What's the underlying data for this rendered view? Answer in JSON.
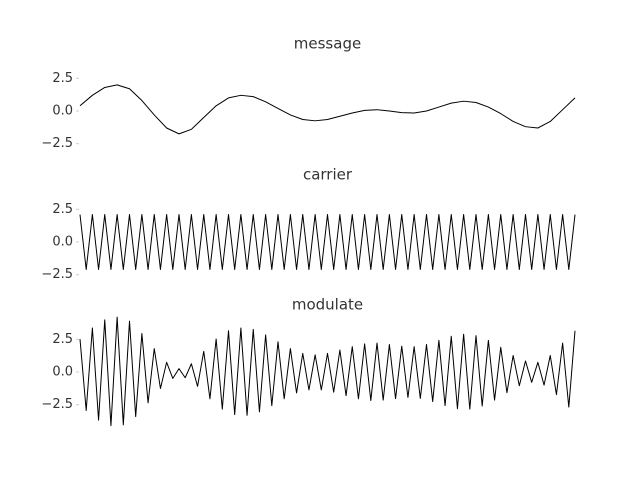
{
  "chart_data": [
    {
      "type": "line",
      "title": "message",
      "color": "#000000",
      "x": [
        0,
        0.025,
        0.05,
        0.075,
        0.1,
        0.125,
        0.15,
        0.175,
        0.2,
        0.225,
        0.25,
        0.275,
        0.3,
        0.325,
        0.35,
        0.375,
        0.4,
        0.425,
        0.45,
        0.475,
        0.5,
        0.525,
        0.55,
        0.575,
        0.6,
        0.625,
        0.65,
        0.675,
        0.7,
        0.725,
        0.75,
        0.775,
        0.8,
        0.825,
        0.85,
        0.875,
        0.9,
        0.925,
        0.95,
        0.975,
        1
      ],
      "values": [
        0.4,
        1.2,
        1.8,
        2.0,
        1.7,
        0.8,
        -0.3,
        -1.3,
        -1.75,
        -1.4,
        -0.5,
        0.4,
        1.0,
        1.2,
        1.1,
        0.7,
        0.2,
        -0.3,
        -0.65,
        -0.75,
        -0.65,
        -0.4,
        -0.15,
        0.05,
        0.1,
        0.0,
        -0.12,
        -0.15,
        0.0,
        0.3,
        0.6,
        0.75,
        0.65,
        0.3,
        -0.2,
        -0.8,
        -1.2,
        -1.3,
        -0.8,
        0.1,
        1.0
      ],
      "xlim": [
        0,
        1
      ],
      "ylim": [
        -3.9,
        3.9
      ],
      "yticks": [
        2.5,
        {
          "value": 0,
          "label": "0.0"
        },
        {
          "value": -2.5,
          "label": "−2.5"
        }
      ]
    },
    {
      "type": "line",
      "title": "carrier",
      "color": "#000000",
      "x": [
        0,
        0.0125,
        0.025,
        0.0375,
        0.05,
        0.0625,
        0.075,
        0.0875,
        0.1,
        0.1125,
        0.125,
        0.1375,
        0.15,
        0.1625,
        0.175,
        0.1875,
        0.2,
        0.2125,
        0.225,
        0.2375,
        0.25,
        0.2625,
        0.275,
        0.2875,
        0.3,
        0.3125,
        0.325,
        0.3375,
        0.35,
        0.3625,
        0.375,
        0.3875,
        0.4,
        0.4125,
        0.425,
        0.4375,
        0.45,
        0.4625,
        0.475,
        0.4875,
        0.5,
        0.5125,
        0.525,
        0.5375,
        0.55,
        0.5625,
        0.575,
        0.5875,
        0.6,
        0.6125,
        0.625,
        0.6375,
        0.65,
        0.6625,
        0.675,
        0.6875,
        0.7,
        0.7125,
        0.725,
        0.7375,
        0.75,
        0.7625,
        0.775,
        0.7875,
        0.8,
        0.8125,
        0.825,
        0.8375,
        0.85,
        0.8625,
        0.875,
        0.8875,
        0.9,
        0.9125,
        0.925,
        0.9375,
        0.95,
        0.9625,
        0.975,
        0.9875,
        1
      ],
      "values": [
        2.1,
        -2.1,
        2.1,
        -2.1,
        2.1,
        -2.1,
        2.1,
        -2.1,
        2.1,
        -2.1,
        2.1,
        -2.1,
        2.1,
        -2.1,
        2.1,
        -2.1,
        2.1,
        -2.1,
        2.1,
        -2.1,
        2.1,
        -2.1,
        2.1,
        -2.1,
        2.1,
        -2.1,
        2.1,
        -2.1,
        2.1,
        -2.1,
        2.1,
        -2.1,
        2.1,
        -2.1,
        2.1,
        -2.1,
        2.1,
        -2.1,
        2.1,
        -2.1,
        2.1,
        -2.1,
        2.1,
        -2.1,
        2.1,
        -2.1,
        2.1,
        -2.1,
        2.1,
        -2.1,
        2.1,
        -2.1,
        2.1,
        -2.1,
        2.1,
        -2.1,
        2.1,
        -2.1,
        2.1,
        -2.1,
        2.1,
        -2.1,
        2.1,
        -2.1,
        2.1,
        -2.1,
        2.1,
        -2.1,
        2.1,
        -2.1,
        2.1,
        -2.1,
        2.1,
        -2.1,
        2.1,
        -2.1,
        2.1,
        -2.1,
        2.1,
        -2.1,
        2.1
      ],
      "xlim": [
        0,
        1
      ],
      "ylim": [
        -3.9,
        3.9
      ],
      "yticks": [
        2.5,
        {
          "value": 0,
          "label": "0.0"
        },
        {
          "value": -2.5,
          "label": "−2.5"
        }
      ]
    },
    {
      "type": "line",
      "title": "modulate",
      "color": "#000000",
      "x": [
        0,
        0.0125,
        0.025,
        0.0375,
        0.05,
        0.0625,
        0.075,
        0.0875,
        0.1,
        0.1125,
        0.125,
        0.1375,
        0.15,
        0.1625,
        0.175,
        0.1875,
        0.2,
        0.2125,
        0.225,
        0.2375,
        0.25,
        0.2625,
        0.275,
        0.2875,
        0.3,
        0.3125,
        0.325,
        0.3375,
        0.35,
        0.3625,
        0.375,
        0.3875,
        0.4,
        0.4125,
        0.425,
        0.4375,
        0.45,
        0.4625,
        0.475,
        0.4875,
        0.5,
        0.5125,
        0.525,
        0.5375,
        0.55,
        0.5625,
        0.575,
        0.5875,
        0.6,
        0.6125,
        0.625,
        0.6375,
        0.65,
        0.6625,
        0.675,
        0.6875,
        0.7,
        0.7125,
        0.725,
        0.7375,
        0.75,
        0.7625,
        0.775,
        0.7875,
        0.8,
        0.8125,
        0.825,
        0.8375,
        0.85,
        0.8625,
        0.875,
        0.8875,
        0.9,
        0.9125,
        0.925,
        0.9375,
        0.95,
        0.9625,
        0.975,
        0.9875,
        1
      ],
      "values": [
        2.52,
        -2.94,
        3.36,
        -3.68,
        3.99,
        -4.1,
        4.2,
        -4.04,
        3.89,
        -3.41,
        2.94,
        -2.36,
        1.79,
        -1.26,
        0.74,
        -0.49,
        0.26,
        -0.44,
        0.63,
        -1.1,
        1.58,
        -2.05,
        2.52,
        -2.84,
        3.15,
        -3.26,
        3.36,
        -3.31,
        3.26,
        -3.05,
        2.84,
        -2.57,
        2.31,
        -2.05,
        1.79,
        -1.6,
        1.42,
        -1.37,
        1.31,
        -1.37,
        1.42,
        -1.54,
        1.68,
        -1.81,
        1.94,
        -2.05,
        2.15,
        -2.18,
        2.21,
        -2.15,
        2.1,
        -2.04,
        1.97,
        -1.95,
        1.94,
        -2.02,
        2.1,
        -2.26,
        2.42,
        -2.57,
        2.73,
        -2.81,
        2.89,
        -2.84,
        2.78,
        -2.6,
        2.42,
        -2.15,
        1.89,
        -1.58,
        1.26,
        -1.05,
        0.84,
        -0.79,
        0.74,
        -1.0,
        1.26,
        -1.73,
        2.21,
        -2.68,
        3.15
      ],
      "xlim": [
        0,
        1
      ],
      "ylim": [
        -3.9,
        3.9
      ],
      "yticks": [
        2.5,
        {
          "value": 0,
          "label": "0.0"
        },
        {
          "value": -2.5,
          "label": "−2.5"
        }
      ]
    }
  ]
}
